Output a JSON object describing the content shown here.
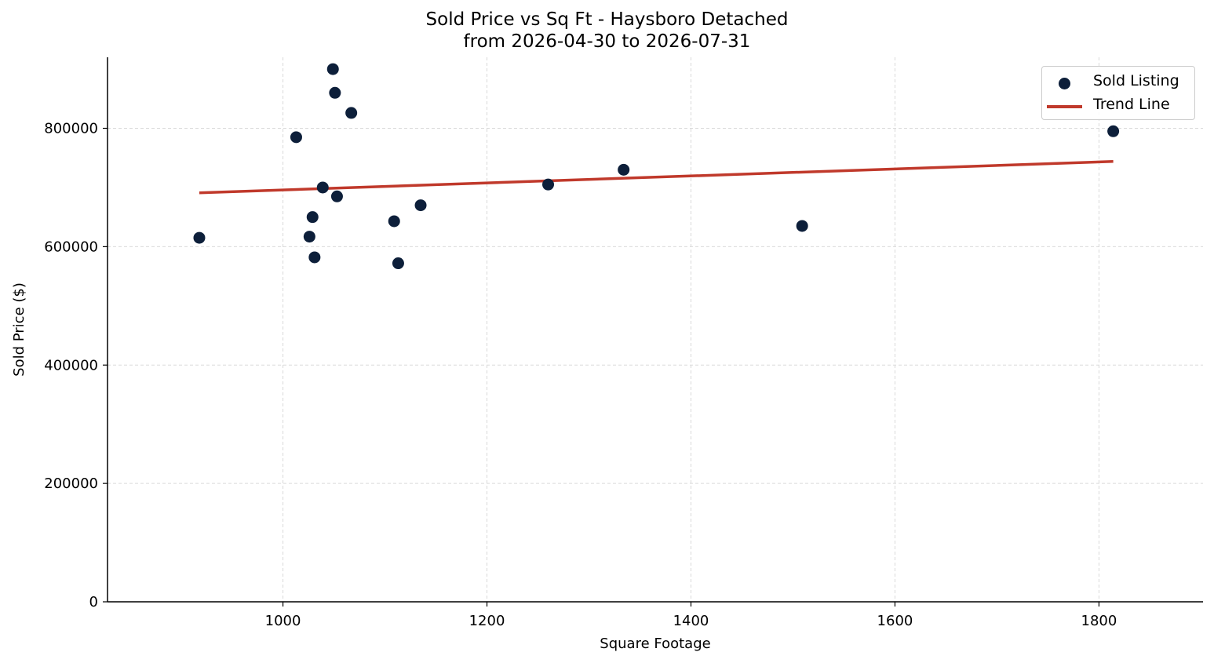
{
  "chart_data": {
    "type": "scatter",
    "title": "Sold Price vs Sq Ft - Haysboro Detached",
    "subtitle": "from 2026-04-30 to 2026-07-31",
    "xlabel": "Square Footage",
    "ylabel": "Sold Price ($)",
    "xlim": [
      828,
      1902
    ],
    "ylim": [
      0,
      920000
    ],
    "xticks": [
      1000,
      1200,
      1400,
      1600,
      1800
    ],
    "yticks": [
      0,
      200000,
      400000,
      600000,
      800000
    ],
    "grid": true,
    "legend_position": "top-right",
    "series": [
      {
        "name": "Sold Listing",
        "kind": "scatter",
        "color": "#0d1f3a",
        "points": [
          {
            "x": 918,
            "y": 615000
          },
          {
            "x": 1013,
            "y": 785000
          },
          {
            "x": 1026,
            "y": 617000
          },
          {
            "x": 1029,
            "y": 650000
          },
          {
            "x": 1031,
            "y": 582000
          },
          {
            "x": 1039,
            "y": 700000
          },
          {
            "x": 1049,
            "y": 900000
          },
          {
            "x": 1051,
            "y": 860000
          },
          {
            "x": 1053,
            "y": 685000
          },
          {
            "x": 1067,
            "y": 826000
          },
          {
            "x": 1109,
            "y": 643000
          },
          {
            "x": 1113,
            "y": 572000
          },
          {
            "x": 1135,
            "y": 670000
          },
          {
            "x": 1260,
            "y": 705000
          },
          {
            "x": 1334,
            "y": 730000
          },
          {
            "x": 1509,
            "y": 635000
          },
          {
            "x": 1814,
            "y": 795000
          }
        ]
      },
      {
        "name": "Trend Line",
        "kind": "line",
        "color": "#c0392b",
        "points": [
          {
            "x": 918,
            "y": 691000
          },
          {
            "x": 1814,
            "y": 744000
          }
        ]
      }
    ]
  }
}
